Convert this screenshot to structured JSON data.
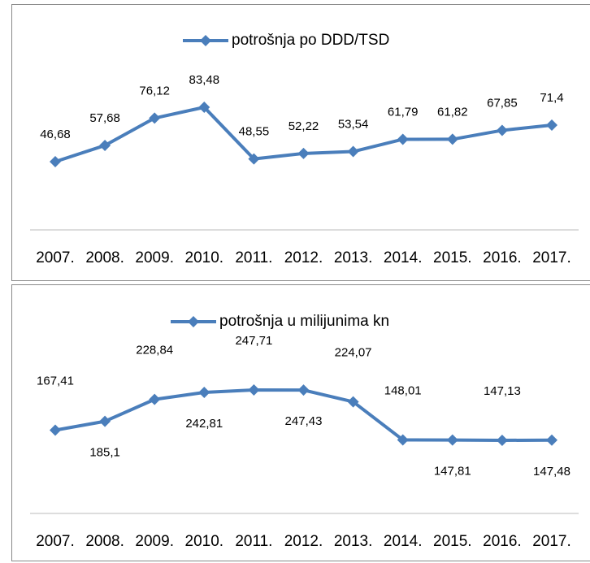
{
  "chart_data": [
    {
      "type": "line",
      "categories": [
        "2007.",
        "2008.",
        "2009.",
        "2010.",
        "2011.",
        "2012.",
        "2013.",
        "2014.",
        "2015.",
        "2016.",
        "2017."
      ],
      "series": [
        {
          "name": "potrošnja po DDD/TSD",
          "color": "#4a7ebb",
          "values": [
            46.68,
            57.68,
            76.12,
            83.48,
            48.55,
            52.22,
            53.54,
            61.79,
            61.82,
            67.85,
            71.4
          ],
          "value_labels": [
            "46,68",
            "57,68",
            "76,12",
            "83,48",
            "48,55",
            "52,22",
            "53,54",
            "61,79",
            "61,82",
            "67,85",
            "71,4"
          ]
        }
      ]
    },
    {
      "type": "line",
      "categories": [
        "2007.",
        "2008.",
        "2009.",
        "2010.",
        "2011.",
        "2012.",
        "2013.",
        "2014.",
        "2015.",
        "2016.",
        "2017."
      ],
      "series": [
        {
          "name": "potrošnja u milijunima kn",
          "color": "#4a7ebb",
          "values": [
            167.41,
            185.1,
            228.84,
            242.81,
            247.71,
            247.43,
            224.07,
            148.01,
            147.81,
            147.13,
            147.48
          ],
          "value_labels": [
            "167,41",
            "185,1",
            "228,84",
            "242,81",
            "247,71",
            "247,43",
            "224,07",
            "148,01",
            "147,81",
            "147,13",
            "147,48"
          ]
        }
      ]
    }
  ]
}
